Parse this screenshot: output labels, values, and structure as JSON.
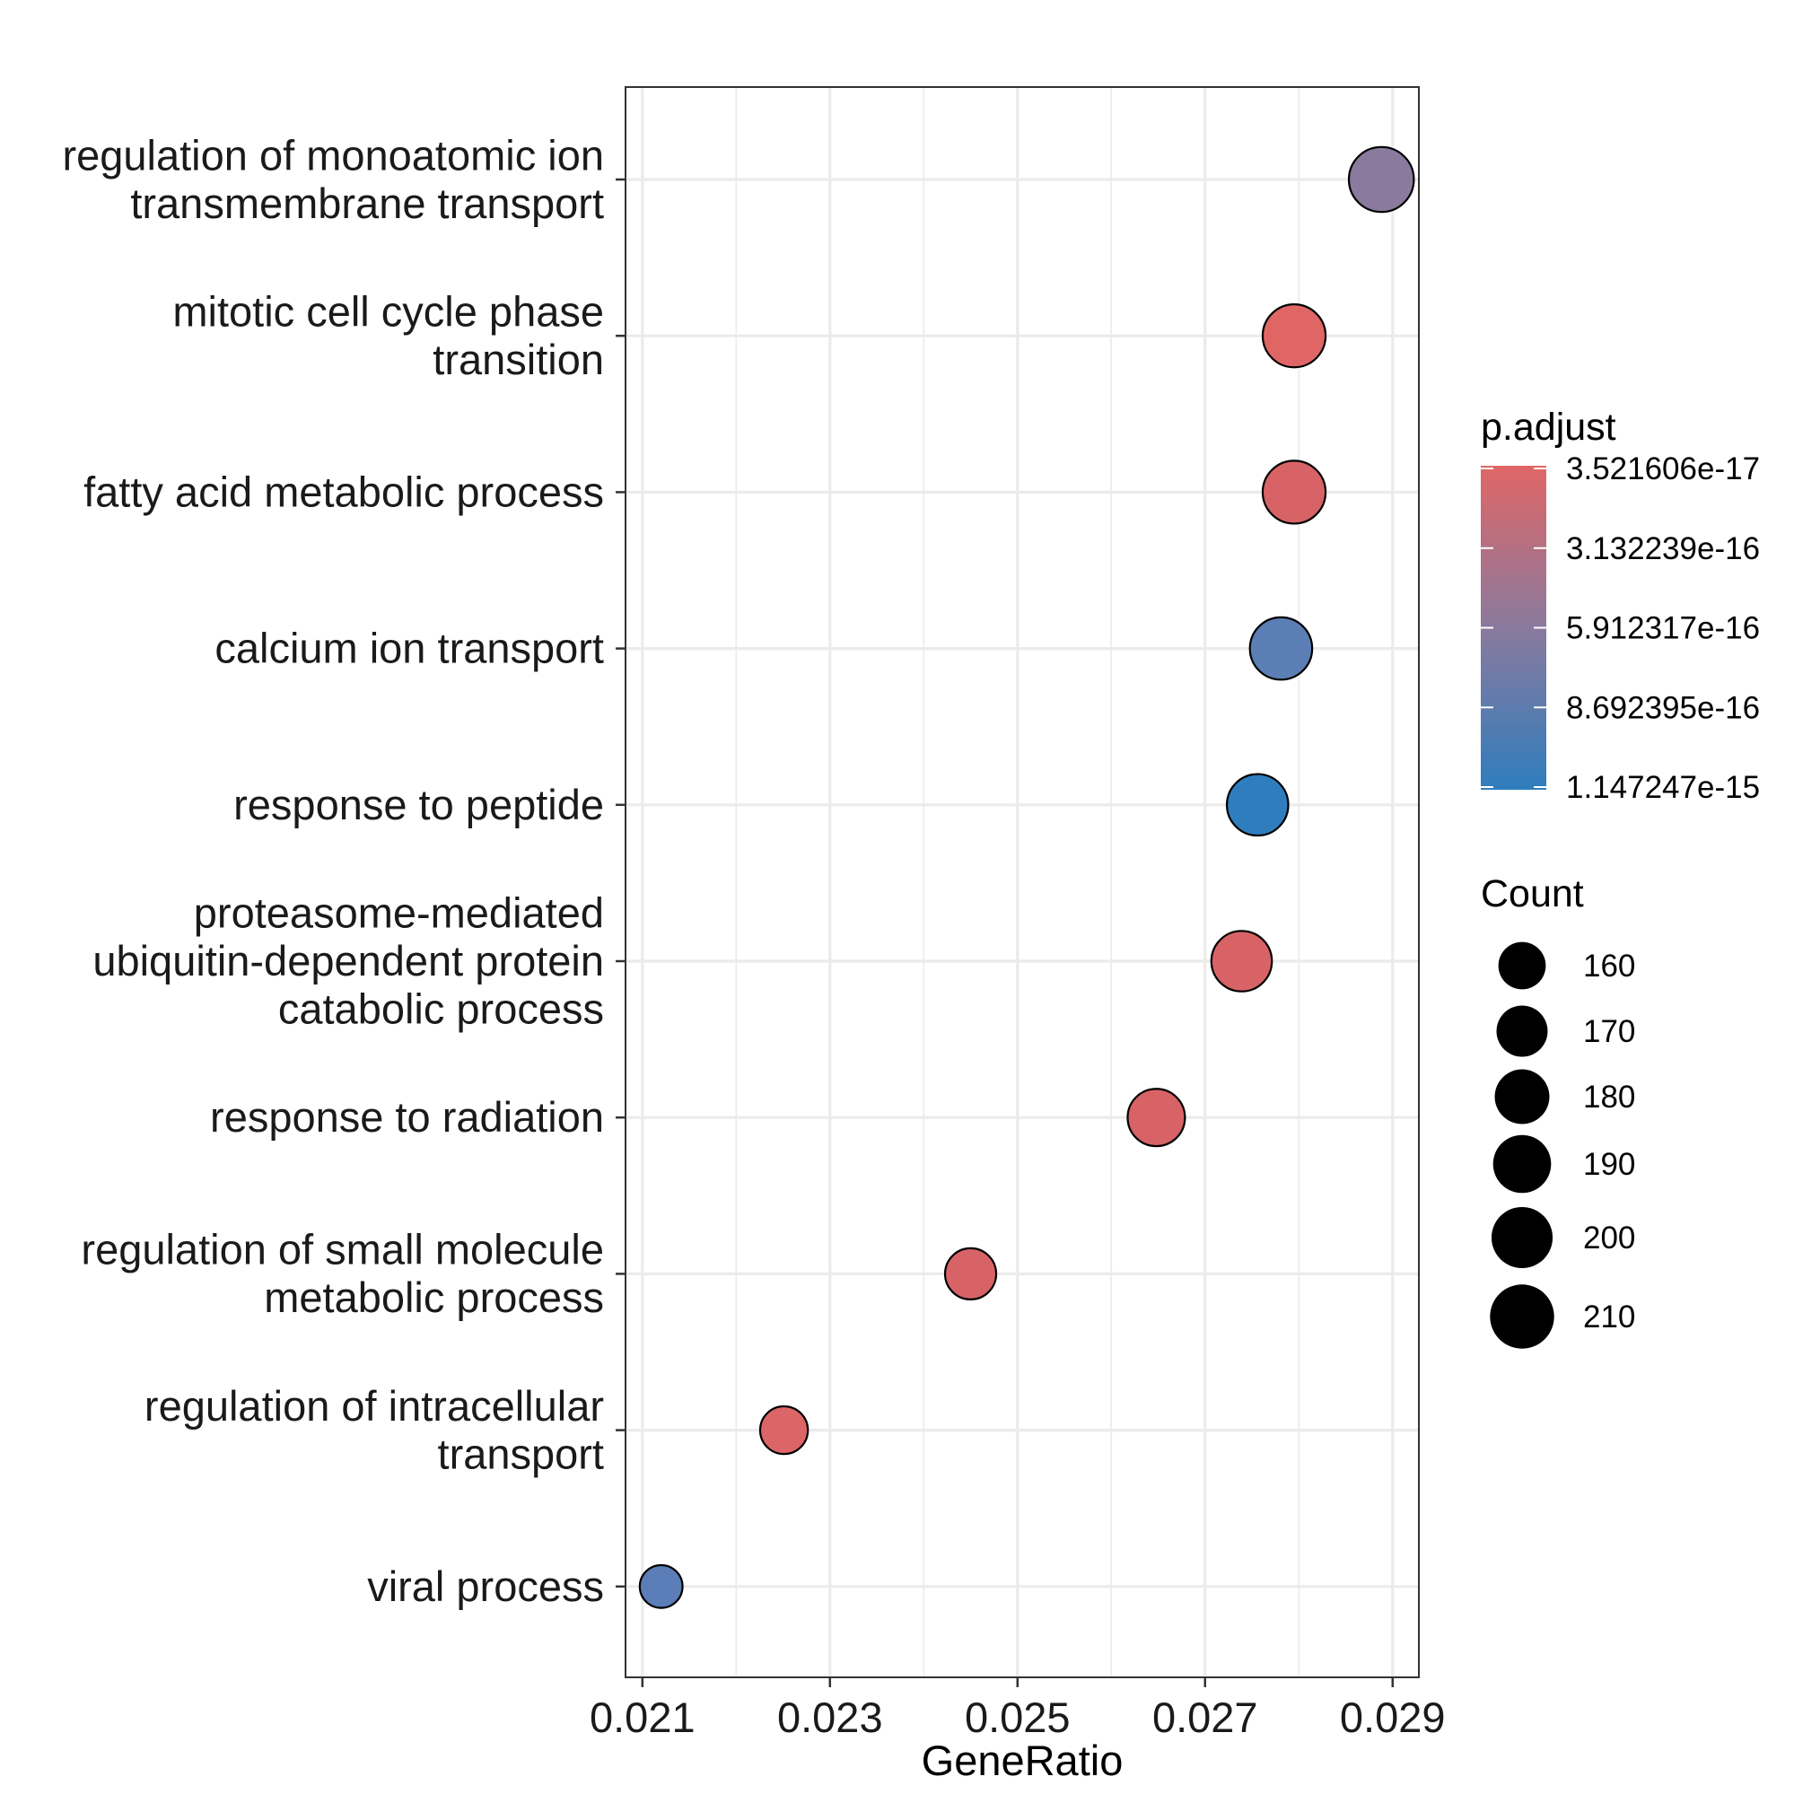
{
  "chart_data": {
    "type": "scatter",
    "title": "",
    "xlabel": "GeneRatio",
    "ylabel": "",
    "xlim": [
      0.02082,
      0.02928
    ],
    "x_ticks": [
      "0.021",
      "0.023",
      "0.025",
      "0.027",
      "0.029"
    ],
    "x_tick_values": [
      0.021,
      0.023,
      0.025,
      0.027,
      0.029
    ],
    "grid": true,
    "categories": [
      [
        "regulation of monoatomic ion",
        "transmembrane transport"
      ],
      [
        "mitotic cell cycle phase",
        "transition"
      ],
      [
        "fatty acid metabolic process"
      ],
      [
        "calcium ion transport"
      ],
      [
        "response to peptide"
      ],
      [
        "proteasome-mediated",
        "ubiquitin-dependent protein",
        "catabolic process"
      ],
      [
        "response to radiation"
      ],
      [
        "regulation of small molecule",
        "metabolic process"
      ],
      [
        "regulation of intracellular",
        "transport"
      ],
      [
        "viral process"
      ]
    ],
    "points": [
      {
        "x": 0.02888,
        "count": 213,
        "color": "#8a7a9e"
      },
      {
        "x": 0.02795,
        "count": 206,
        "color": "#e06666"
      },
      {
        "x": 0.02795,
        "count": 206,
        "color": "#d76367"
      },
      {
        "x": 0.02781,
        "count": 204,
        "color": "#5b7fb5"
      },
      {
        "x": 0.02756,
        "count": 201,
        "color": "#2f7dbd"
      },
      {
        "x": 0.02739,
        "count": 198,
        "color": "#d86367"
      },
      {
        "x": 0.02648,
        "count": 188,
        "color": "#d86367"
      },
      {
        "x": 0.0245,
        "count": 170,
        "color": "#d86367"
      },
      {
        "x": 0.02251,
        "count": 161,
        "color": "#dc6567"
      },
      {
        "x": 0.0212,
        "count": 149,
        "color": "#5b7db8"
      }
    ],
    "legend_placement": "right",
    "color_legend": {
      "title": "p.adjust",
      "labels": [
        "3.521606e-17",
        "3.132239e-16",
        "5.912317e-16",
        "8.692395e-16",
        "1.147247e-15"
      ],
      "colors": [
        "#e06666",
        "#8a7a9e",
        "#2f7dbd"
      ]
    },
    "size_legend": {
      "title": "Count",
      "labels": [
        "160",
        "170",
        "180",
        "190",
        "200",
        "210"
      ],
      "values": [
        160,
        170,
        180,
        190,
        200,
        210
      ]
    }
  }
}
